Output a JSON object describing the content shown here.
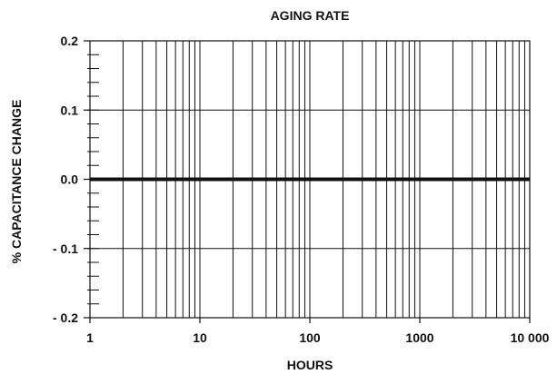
{
  "chart_data": {
    "type": "line",
    "title": "AGING RATE",
    "xlabel": "HOURS",
    "ylabel": "% CAPACITANCE CHANGE",
    "x_scale": "log",
    "xlim": [
      1,
      10000
    ],
    "ylim": [
      -0.2,
      0.2
    ],
    "x_ticks": [
      1,
      10,
      100,
      1000,
      10000
    ],
    "x_tick_labels": [
      "1",
      "10",
      "100",
      "1000",
      "10 000"
    ],
    "y_ticks": [
      0.2,
      0.1,
      0.0,
      -0.1,
      -0.2
    ],
    "y_tick_labels": [
      "0.2",
      "0.1",
      "0.0",
      "- 0.1",
      "- 0.2"
    ],
    "grid": true,
    "series": [
      {
        "x": [
          1,
          10000
        ],
        "y": [
          0.0,
          0.0
        ]
      }
    ]
  }
}
